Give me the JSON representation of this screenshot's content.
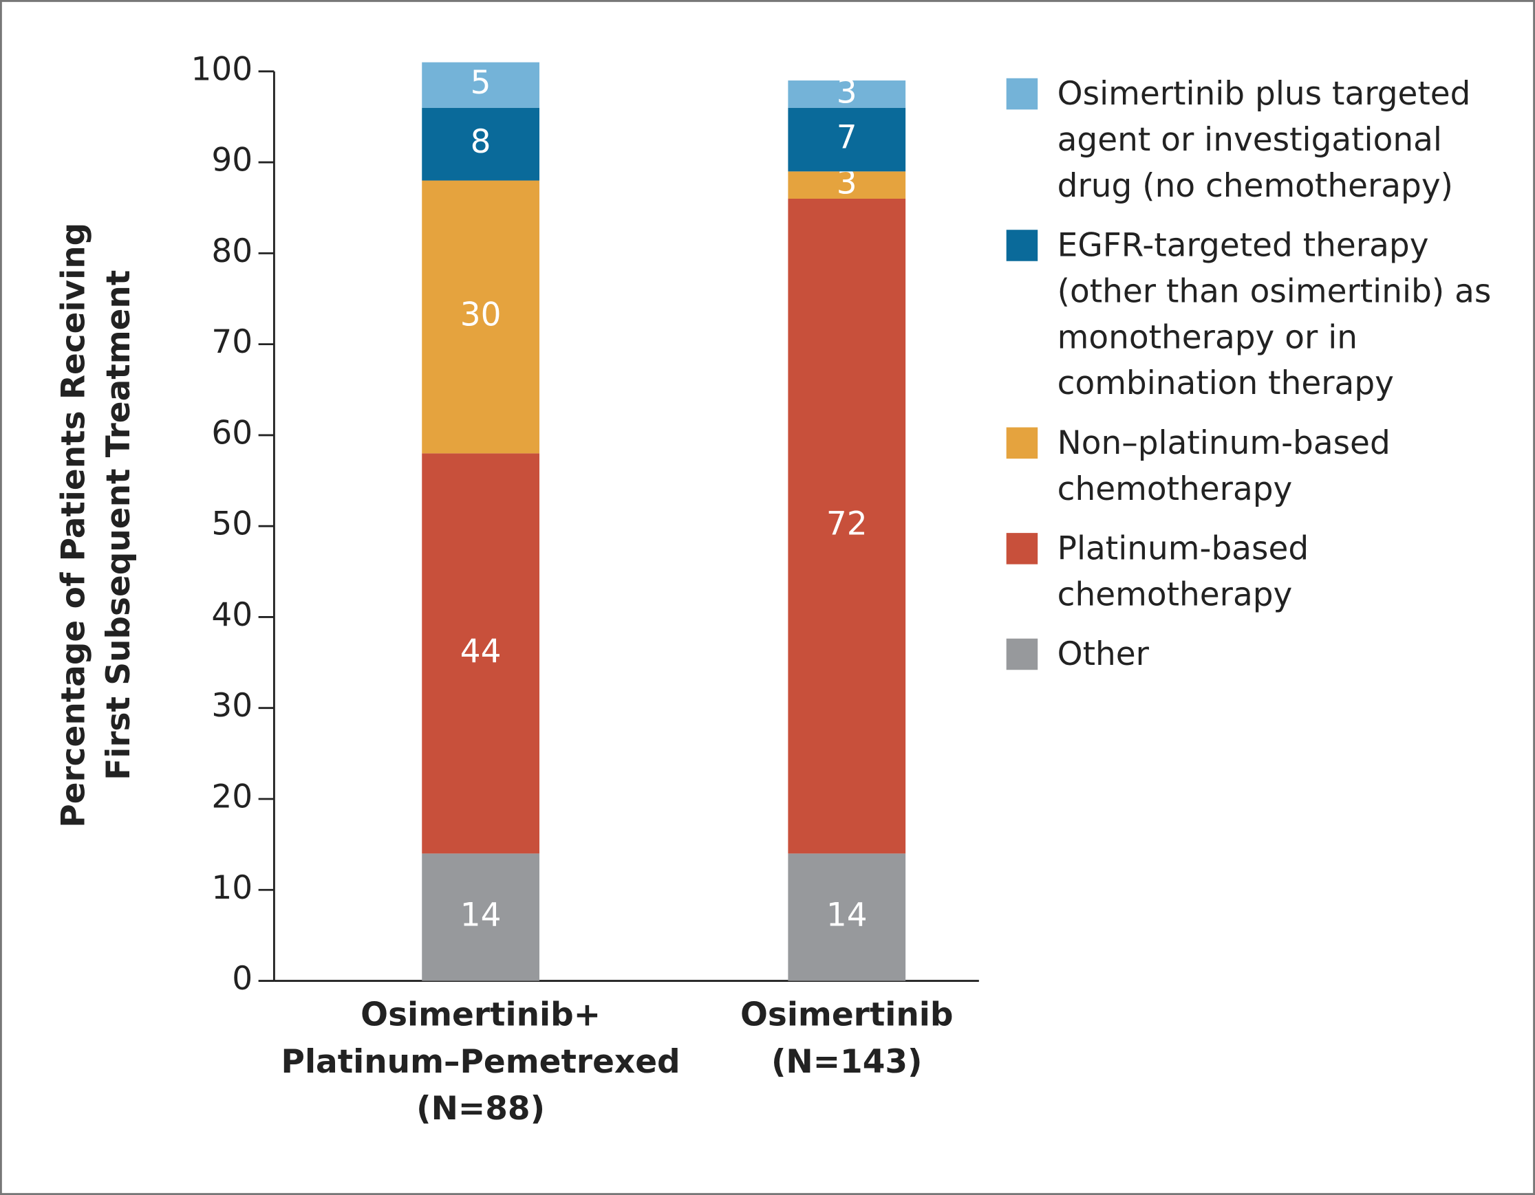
{
  "chart_data": {
    "type": "stacked_bar",
    "y_label": [
      "Percentage of Patients Receiving",
      "First Subsequent Treatment"
    ],
    "categories": [
      [
        "Osimertinib+",
        "Platinum–Pemetrexed",
        "(N=88)"
      ],
      [
        "Osimertinib",
        "(N=143)"
      ]
    ],
    "series": [
      {
        "name": "Other",
        "color": "#97999c",
        "values": [
          14,
          14
        ]
      },
      {
        "name": "Platinum-based chemotherapy",
        "color": "#c8503b",
        "values": [
          44,
          72
        ]
      },
      {
        "name": "Non–platinum-based chemotherapy",
        "color": "#e5a33e",
        "values": [
          30,
          3
        ]
      },
      {
        "name": "EGFR-targeted therapy (other than osimertinib) as monotherapy or in combination therapy",
        "color": "#0a6a9a",
        "values": [
          8,
          7
        ]
      },
      {
        "name": "Osimertinib plus targeted agent or investigational drug (no chemotherapy)",
        "color": "#74b3d8",
        "values": [
          5,
          3
        ]
      }
    ],
    "ylim": [
      0,
      100
    ],
    "yticks": [
      0,
      10,
      20,
      30,
      40,
      50,
      60,
      70,
      80,
      90,
      100
    ]
  }
}
